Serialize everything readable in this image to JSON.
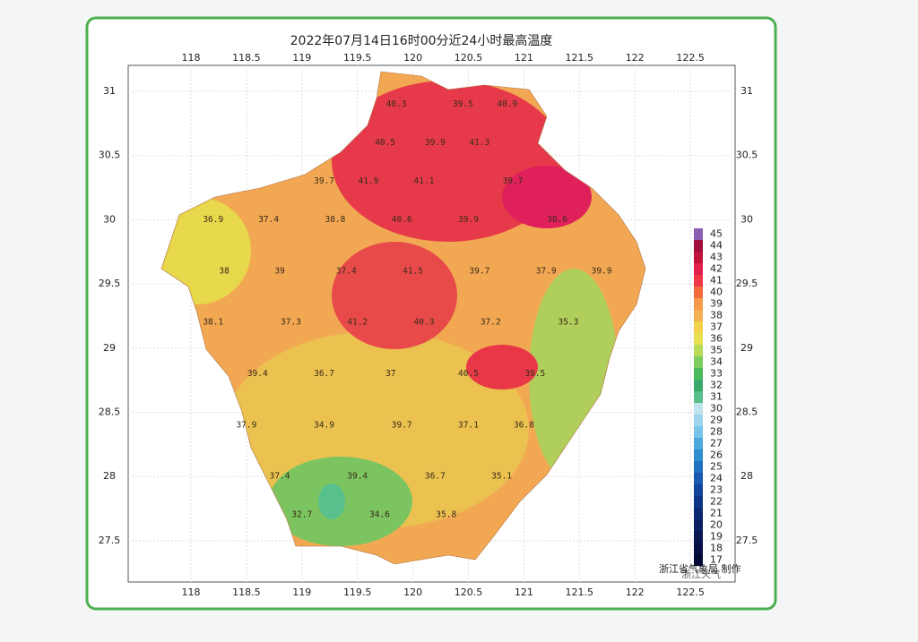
{
  "title": "2022年07月14日16时00分近24小时最高温度",
  "xticks": [
    118,
    118.5,
    119,
    119.5,
    120,
    120.5,
    121,
    121.5,
    122,
    122.5
  ],
  "yticks": [
    31,
    30.5,
    30,
    29.5,
    29,
    28.5,
    28,
    27.5
  ],
  "legend": {
    "levels": [
      45,
      44,
      43,
      42,
      41,
      40,
      39,
      38,
      37,
      36,
      35,
      34,
      33,
      32,
      31,
      30,
      29,
      28,
      27,
      26,
      25,
      24,
      23,
      22,
      21,
      20,
      19,
      18,
      17
    ],
    "colors": [
      "#8b5fb0",
      "#a0103a",
      "#c0143c",
      "#e0204a",
      "#ee3848",
      "#f26a3c",
      "#f59a48",
      "#f4b054",
      "#f2d24c",
      "#e8e050",
      "#b8dc58",
      "#7ccc60",
      "#4cb85c",
      "#3aa86a",
      "#58c08c",
      "#bfe4ee",
      "#9cd4ee",
      "#78c4ea",
      "#4ea8de",
      "#2e8ed0",
      "#1e70c0",
      "#1858b0",
      "#12449c",
      "#0e3488",
      "#0c2874",
      "#0a1e62",
      "#081652",
      "#061044",
      "#040a36"
    ]
  },
  "points": [
    {
      "lon": 119.85,
      "lat": 30.9,
      "value": 40.3
    },
    {
      "lon": 120.45,
      "lat": 30.9,
      "value": 39.5
    },
    {
      "lon": 120.85,
      "lat": 30.9,
      "value": 40.9
    },
    {
      "lon": 119.75,
      "lat": 30.6,
      "value": 40.5
    },
    {
      "lon": 120.2,
      "lat": 30.6,
      "value": 39.9
    },
    {
      "lon": 120.6,
      "lat": 30.6,
      "value": 41.3
    },
    {
      "lon": 119.2,
      "lat": 30.3,
      "value": 39.7
    },
    {
      "lon": 119.6,
      "lat": 30.3,
      "value": 41.9
    },
    {
      "lon": 120.1,
      "lat": 30.3,
      "value": 41.1
    },
    {
      "lon": 120.9,
      "lat": 30.3,
      "value": 39.7
    },
    {
      "lon": 118.2,
      "lat": 30.0,
      "value": 36.9
    },
    {
      "lon": 118.7,
      "lat": 30.0,
      "value": 37.4
    },
    {
      "lon": 119.3,
      "lat": 30.0,
      "value": 38.8
    },
    {
      "lon": 119.9,
      "lat": 30.0,
      "value": 40.6
    },
    {
      "lon": 120.5,
      "lat": 30.0,
      "value": 39.9
    },
    {
      "lon": 121.3,
      "lat": 30.0,
      "value": 38.6
    },
    {
      "lon": 118.3,
      "lat": 29.6,
      "value": 38.0
    },
    {
      "lon": 118.8,
      "lat": 29.6,
      "value": 39.0
    },
    {
      "lon": 119.4,
      "lat": 29.6,
      "value": 37.4
    },
    {
      "lon": 120.0,
      "lat": 29.6,
      "value": 41.5
    },
    {
      "lon": 120.6,
      "lat": 29.6,
      "value": 39.7
    },
    {
      "lon": 121.2,
      "lat": 29.6,
      "value": 37.9
    },
    {
      "lon": 121.7,
      "lat": 29.6,
      "value": 39.9
    },
    {
      "lon": 118.2,
      "lat": 29.2,
      "value": 38.1
    },
    {
      "lon": 118.9,
      "lat": 29.2,
      "value": 37.3
    },
    {
      "lon": 119.5,
      "lat": 29.2,
      "value": 41.2
    },
    {
      "lon": 120.1,
      "lat": 29.2,
      "value": 40.3
    },
    {
      "lon": 120.7,
      "lat": 29.2,
      "value": 37.2
    },
    {
      "lon": 121.4,
      "lat": 29.2,
      "value": 35.3
    },
    {
      "lon": 118.6,
      "lat": 28.8,
      "value": 39.4
    },
    {
      "lon": 119.2,
      "lat": 28.8,
      "value": 36.7
    },
    {
      "lon": 119.8,
      "lat": 28.8,
      "value": 37.0
    },
    {
      "lon": 120.5,
      "lat": 28.8,
      "value": 40.5
    },
    {
      "lon": 121.1,
      "lat": 28.8,
      "value": 39.5
    },
    {
      "lon": 118.5,
      "lat": 28.4,
      "value": 37.9
    },
    {
      "lon": 119.2,
      "lat": 28.4,
      "value": 34.9
    },
    {
      "lon": 119.9,
      "lat": 28.4,
      "value": 39.7
    },
    {
      "lon": 120.5,
      "lat": 28.4,
      "value": 37.1
    },
    {
      "lon": 121.0,
      "lat": 28.4,
      "value": 36.8
    },
    {
      "lon": 118.8,
      "lat": 28.0,
      "value": 37.4
    },
    {
      "lon": 119.5,
      "lat": 28.0,
      "value": 39.4
    },
    {
      "lon": 120.2,
      "lat": 28.0,
      "value": 36.7
    },
    {
      "lon": 120.8,
      "lat": 28.0,
      "value": 35.1
    },
    {
      "lon": 119.0,
      "lat": 27.7,
      "value": 32.7
    },
    {
      "lon": 119.7,
      "lat": 27.7,
      "value": 34.6
    },
    {
      "lon": 120.3,
      "lat": 27.7,
      "value": 35.8
    }
  ],
  "footer": "浙江省气象局 制作",
  "watermark": "浙江天气"
}
